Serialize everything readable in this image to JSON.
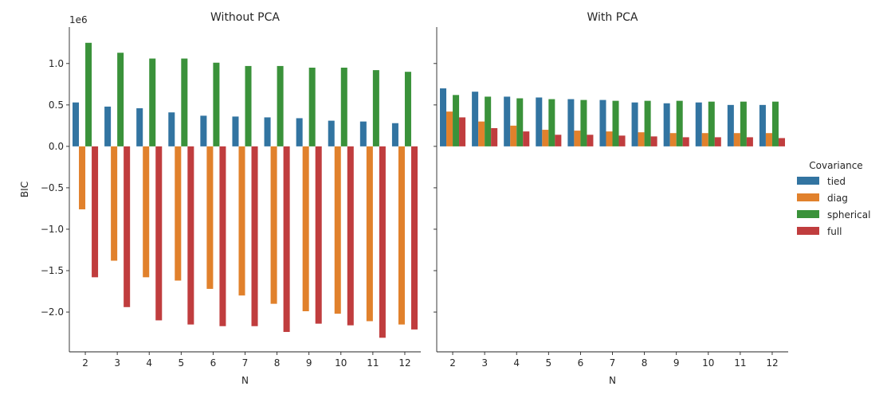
{
  "chart_data": {
    "type": "bar",
    "categories": [
      "2",
      "3",
      "4",
      "5",
      "6",
      "7",
      "8",
      "9",
      "10",
      "11",
      "12"
    ],
    "xlabel": "N",
    "ylabel": "BIC",
    "y_offset_label": "1e6",
    "ylim": [
      -2.48,
      1.44
    ],
    "yticks": [
      -2.0,
      -1.5,
      -1.0,
      -0.5,
      0.0,
      0.5,
      1.0
    ],
    "ytick_labels": [
      "−2.0",
      "−1.5",
      "−1.0",
      "−0.5",
      "0.0",
      "0.5",
      "1.0"
    ],
    "shared_y": true,
    "grid": false,
    "legend": {
      "title": "Covariance",
      "placement": "right",
      "entries": [
        "tied",
        "diag",
        "spherical",
        "full"
      ]
    },
    "colors": {
      "tied": "#3274a1",
      "diag": "#e1812c",
      "spherical": "#3a923a",
      "full": "#c03d3e"
    },
    "panels": [
      {
        "title": "Without PCA",
        "series": [
          {
            "name": "tied",
            "values": [
              0.53,
              0.48,
              0.46,
              0.41,
              0.37,
              0.36,
              0.35,
              0.34,
              0.31,
              0.3,
              0.28
            ]
          },
          {
            "name": "diag",
            "values": [
              -0.76,
              -1.38,
              -1.58,
              -1.62,
              -1.72,
              -1.8,
              -1.9,
              -1.99,
              -2.02,
              -2.11,
              -2.15
            ]
          },
          {
            "name": "spherical",
            "values": [
              1.25,
              1.13,
              1.06,
              1.06,
              1.01,
              0.97,
              0.97,
              0.95,
              0.95,
              0.92,
              0.9
            ]
          },
          {
            "name": "full",
            "values": [
              -1.58,
              -1.94,
              -2.1,
              -2.15,
              -2.17,
              -2.17,
              -2.24,
              -2.14,
              -2.16,
              -2.31,
              -2.21
            ]
          }
        ]
      },
      {
        "title": "With PCA",
        "series": [
          {
            "name": "tied",
            "values": [
              0.7,
              0.66,
              0.6,
              0.59,
              0.57,
              0.56,
              0.53,
              0.52,
              0.53,
              0.5,
              0.5
            ]
          },
          {
            "name": "diag",
            "values": [
              0.42,
              0.3,
              0.25,
              0.2,
              0.19,
              0.18,
              0.17,
              0.16,
              0.16,
              0.16,
              0.16
            ]
          },
          {
            "name": "spherical",
            "values": [
              0.62,
              0.6,
              0.58,
              0.57,
              0.56,
              0.55,
              0.55,
              0.55,
              0.54,
              0.54,
              0.54
            ]
          },
          {
            "name": "full",
            "values": [
              0.35,
              0.22,
              0.18,
              0.14,
              0.14,
              0.13,
              0.12,
              0.11,
              0.11,
              0.11,
              0.1
            ]
          }
        ]
      }
    ]
  }
}
